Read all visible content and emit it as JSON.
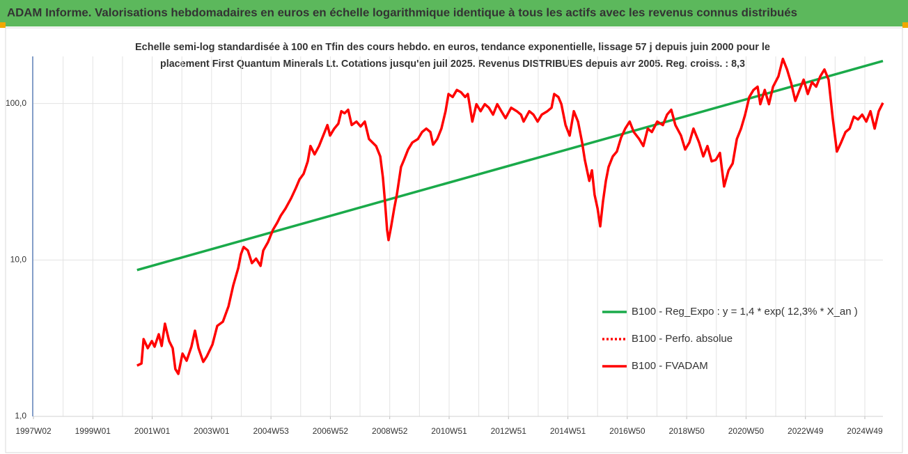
{
  "chart_data": {
    "type": "line",
    "title": "ADAM Informe. Valorisations hebdomadaires en euros en échelle logarithmique identique à tous les actifs avec les revenus connus distribués",
    "subtitle": [
      "Echelle semi-log standardisée à 100 en Tfin des cours hebdo. en euros, tendance exponentielle, lissage 57 j depuis juin 2000 pour le",
      "placement First Quantum Minerals Lt. Cotations jusqu'en juil 2025. Revenus DISTRIBUES depuis avr 2005. Reg. croiss. : 8,3"
    ],
    "log_scale": true,
    "ylim": [
      1,
      200
    ],
    "yticks": [
      {
        "value": 1,
        "label": "1,0"
      },
      {
        "value": 10,
        "label": "10,0"
      },
      {
        "value": 100,
        "label": "100,0"
      }
    ],
    "xlim": [
      1997,
      2025.61
    ],
    "xticks": [
      {
        "value": 1997,
        "label": "1997W02"
      },
      {
        "value": 1999,
        "label": "1999W01"
      },
      {
        "value": 2001,
        "label": "2001W01"
      },
      {
        "value": 2003,
        "label": "2003W01"
      },
      {
        "value": 2005,
        "label": "2004W53"
      },
      {
        "value": 2007,
        "label": "2006W52"
      },
      {
        "value": 2009,
        "label": "2008W52"
      },
      {
        "value": 2011,
        "label": "2010W51"
      },
      {
        "value": 2013,
        "label": "2012W51"
      },
      {
        "value": 2015,
        "label": "2014W51"
      },
      {
        "value": 2017,
        "label": "2016W50"
      },
      {
        "value": 2019,
        "label": "2018W50"
      },
      {
        "value": 2021,
        "label": "2020W50"
      },
      {
        "value": 2023,
        "label": "2022W49"
      },
      {
        "value": 2025,
        "label": "2024W49"
      }
    ],
    "xgrid": [
      1998,
      1999,
      2000,
      2001,
      2002,
      2003,
      2004,
      2005,
      2006,
      2007,
      2008,
      2009,
      2010,
      2011,
      2012,
      2013,
      2014,
      2015,
      2016,
      2017,
      2018,
      2019,
      2020,
      2021,
      2022,
      2023,
      2024,
      2025
    ],
    "grid": true,
    "series": [
      {
        "name": "B100 - Reg_Expo : y = 1,4 * exp( 12,3% *  X_an )",
        "color": "#1aaa4a",
        "style": "solid",
        "x": [
          2000.49,
          2025.61
        ],
        "values": [
          8.62,
          187
        ]
      },
      {
        "name": "B100 - Perfo. absolue",
        "color": "#ff0000",
        "style": "dotted",
        "x": [],
        "values": []
      },
      {
        "name": "B100 - FVADAM",
        "color": "#ff0000",
        "style": "solid",
        "x": [
          2000.49,
          2000.64,
          2000.71,
          2000.85,
          2000.99,
          2001.08,
          2001.22,
          2001.32,
          2001.43,
          2001.57,
          2001.69,
          2001.78,
          2001.88,
          2002.02,
          2002.16,
          2002.32,
          2002.44,
          2002.56,
          2002.72,
          2002.84,
          2003.03,
          2003.19,
          2003.38,
          2003.57,
          2003.73,
          2003.9,
          2003.99,
          2004.08,
          2004.22,
          2004.36,
          2004.5,
          2004.65,
          2004.74,
          2004.9,
          2005.07,
          2005.21,
          2005.33,
          2005.49,
          2005.68,
          2005.84,
          2005.96,
          2006.1,
          2006.24,
          2006.33,
          2006.47,
          2006.62,
          2006.76,
          2006.9,
          2006.99,
          2007.13,
          2007.27,
          2007.37,
          2007.48,
          2007.6,
          2007.72,
          2007.88,
          2008.02,
          2008.16,
          2008.3,
          2008.54,
          2008.68,
          2008.77,
          2008.84,
          2008.91,
          2008.96,
          2009.05,
          2009.15,
          2009.24,
          2009.38,
          2009.48,
          2009.62,
          2009.76,
          2009.95,
          2010.09,
          2010.23,
          2010.37,
          2010.46,
          2010.6,
          2010.74,
          2010.88,
          2010.98,
          2011.12,
          2011.26,
          2011.4,
          2011.54,
          2011.63,
          2011.78,
          2011.92,
          2012.06,
          2012.2,
          2012.34,
          2012.48,
          2012.62,
          2012.76,
          2012.9,
          2013.09,
          2013.28,
          2013.42,
          2013.51,
          2013.7,
          2013.84,
          2013.98,
          2014.12,
          2014.31,
          2014.45,
          2014.54,
          2014.68,
          2014.78,
          2014.92,
          2015.06,
          2015.2,
          2015.34,
          2015.48,
          2015.57,
          2015.72,
          2015.81,
          2015.9,
          2016.0,
          2016.09,
          2016.18,
          2016.28,
          2016.37,
          2016.51,
          2016.65,
          2016.79,
          2016.93,
          2017.08,
          2017.22,
          2017.4,
          2017.54,
          2017.69,
          2017.83,
          2018.01,
          2018.2,
          2018.34,
          2018.48,
          2018.62,
          2018.81,
          2018.95,
          2019.09,
          2019.23,
          2019.42,
          2019.56,
          2019.7,
          2019.84,
          2019.98,
          2020.12,
          2020.26,
          2020.41,
          2020.55,
          2020.69,
          2020.83,
          2020.97,
          2021.11,
          2021.25,
          2021.39,
          2021.48,
          2021.63,
          2021.77,
          2021.91,
          2022.09,
          2022.24,
          2022.38,
          2022.52,
          2022.66,
          2022.8,
          2022.94,
          2023.08,
          2023.22,
          2023.36,
          2023.5,
          2023.64,
          2023.78,
          2023.92,
          2024.06,
          2024.2,
          2024.35,
          2024.49,
          2024.63,
          2024.77,
          2024.91,
          2025.05,
          2025.19,
          2025.33,
          2025.47,
          2025.61
        ],
        "values": [
          2.11,
          2.18,
          3.12,
          2.73,
          3.03,
          2.79,
          3.35,
          2.82,
          3.91,
          3.03,
          2.73,
          2.01,
          1.87,
          2.52,
          2.27,
          2.79,
          3.53,
          2.73,
          2.23,
          2.42,
          2.88,
          3.79,
          4.03,
          5.06,
          6.88,
          8.89,
          10.9,
          12.1,
          11.5,
          9.55,
          10.2,
          9.17,
          11.5,
          13.0,
          15.6,
          17.3,
          19.2,
          21.3,
          24.8,
          28.9,
          32.7,
          35.5,
          42.7,
          53.5,
          47.3,
          53.5,
          62.4,
          72.8,
          62.4,
          69.1,
          74.3,
          89.3,
          86.6,
          91.2,
          72.8,
          76.6,
          71.3,
          76.6,
          59.3,
          53.5,
          45.9,
          33.7,
          23.5,
          15.6,
          13.4,
          16.4,
          21.3,
          26.1,
          39.3,
          43.6,
          50.8,
          56.3,
          59.3,
          65.7,
          69.1,
          65.7,
          54.6,
          59.3,
          69.1,
          89.3,
          115,
          110,
          122,
          118,
          110,
          115,
          76.6,
          99.0,
          89.3,
          99.0,
          94.0,
          84.9,
          99.0,
          89.3,
          80.6,
          94.0,
          89.3,
          84.9,
          76.6,
          89.3,
          84.9,
          76.6,
          84.9,
          89.3,
          94.0,
          115,
          110,
          99.0,
          72.8,
          62.4,
          89.3,
          76.6,
          56.3,
          43.6,
          32.0,
          37.4,
          26.1,
          21.3,
          16.4,
          23.5,
          32.0,
          39.3,
          45.9,
          49.3,
          60.5,
          69.1,
          76.6,
          65.7,
          59.3,
          53.5,
          69.1,
          65.7,
          76.6,
          72.8,
          84.9,
          91.2,
          72.8,
          62.4,
          50.8,
          56.3,
          69.1,
          56.3,
          45.9,
          53.5,
          42.7,
          43.6,
          48.3,
          29.5,
          37.4,
          41.4,
          59.3,
          69.1,
          84.9,
          110,
          122,
          128,
          99.0,
          122,
          99.0,
          128,
          149,
          193,
          165,
          135,
          104,
          122,
          142,
          115,
          137,
          128,
          149,
          165,
          142,
          80.6,
          49.3,
          56.3,
          65.7,
          69.1,
          82.3,
          79.0,
          84.9,
          76.6,
          89.3,
          69.1,
          89.3,
          101
        ]
      }
    ]
  }
}
